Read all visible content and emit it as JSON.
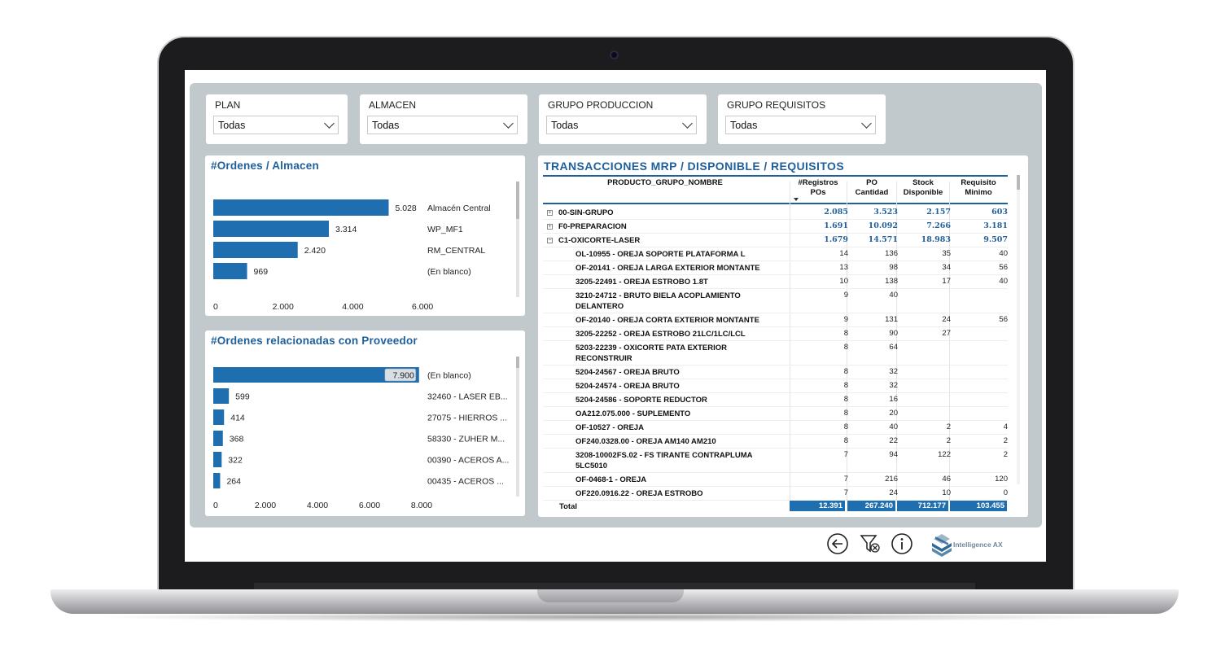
{
  "slicers": [
    {
      "title": "PLAN",
      "value": "Todas"
    },
    {
      "title": "ALMACEN",
      "value": "Todas"
    },
    {
      "title": "GRUPO PRODUCCION",
      "value": "Todas"
    },
    {
      "title": "GRUPO REQUISITOS",
      "value": "Todas"
    }
  ],
  "chart_data": [
    {
      "type": "bar",
      "orientation": "horizontal",
      "title": "#Ordenes / Almacen",
      "categories": [
        "Almacén Central",
        "WP_MF1",
        "RM_CENTRAL",
        "(En blanco)"
      ],
      "values": [
        5028,
        3314,
        2420,
        969
      ],
      "value_labels": [
        "5.028",
        "3.314",
        "2.420",
        "969"
      ],
      "xlim": [
        0,
        7000
      ],
      "xticks": [
        "0",
        "2.000",
        "4.000",
        "6.000"
      ],
      "xtick_values": [
        0,
        2000,
        4000,
        6000
      ],
      "color": "#1f6fb0"
    },
    {
      "type": "bar",
      "orientation": "horizontal",
      "title": "#Ordenes relacionadas con Proveedor",
      "categories": [
        "(En blanco)",
        "32460 - LASER EB...",
        "27075 - HIERROS ...",
        "58330 - ZUHER M...",
        "00390 - ACEROS A...",
        "00435 - ACEROS ..."
      ],
      "values": [
        7900,
        599,
        414,
        368,
        322,
        264
      ],
      "value_labels": [
        "7.900",
        "599",
        "414",
        "368",
        "322",
        "264"
      ],
      "xlim": [
        0,
        9000
      ],
      "xticks": [
        "0",
        "2.000",
        "4.000",
        "6.000",
        "8.000"
      ],
      "xtick_values": [
        0,
        2000,
        4000,
        6000,
        8000
      ],
      "color": "#1f6fb0"
    }
  ],
  "table": {
    "title": "TRANSACCIONES MRP / DISPONIBLE / REQUISITOS",
    "headers": [
      "PRODUCTO_GRUPO_NOMBRE",
      "#Registros POs",
      "PO Cantidad",
      "Stock Disponible",
      "Requisito Minimo"
    ],
    "header_lines": [
      [
        "PRODUCTO_GRUPO_NOMBRE"
      ],
      [
        "#Registros",
        "POs"
      ],
      [
        "PO",
        "Cantidad"
      ],
      [
        "Stock",
        "Disponible"
      ],
      [
        "Requisito",
        "Minimo"
      ]
    ],
    "rows": [
      {
        "kind": "grp",
        "expander": "+",
        "name": "00-SIN-GRUPO",
        "v": [
          "2.085",
          "3.523",
          "2.157",
          "603"
        ]
      },
      {
        "kind": "grp",
        "expander": "+",
        "name": "F0-PREPARACION",
        "v": [
          "1.691",
          "10.092",
          "7.266",
          "3.181"
        ]
      },
      {
        "kind": "grp",
        "expander": "−",
        "name": "C1-OXICORTE-LASER",
        "v": [
          "1.679",
          "14.571",
          "18.983",
          "9.507"
        ]
      },
      {
        "kind": "det",
        "name": "OL-10955 - OREJA SOPORTE PLATAFORMA L",
        "v": [
          "14",
          "136",
          "35",
          "40"
        ]
      },
      {
        "kind": "det",
        "name": "OF-20141 - OREJA LARGA EXTERIOR MONTANTE",
        "v": [
          "13",
          "98",
          "34",
          "56"
        ]
      },
      {
        "kind": "det",
        "name": "3205-22491 - OREJA ESTROBO 1.8T",
        "v": [
          "10",
          "138",
          "17",
          "40"
        ]
      },
      {
        "kind": "det",
        "name": "3210-24712 - BRUTO BIELA ACOPLAMIENTO DELANTERO",
        "v": [
          "9",
          "40",
          "",
          ""
        ]
      },
      {
        "kind": "det",
        "name": "OF-20140 - OREJA CORTA EXTERIOR MONTANTE",
        "v": [
          "9",
          "131",
          "24",
          "56"
        ]
      },
      {
        "kind": "det",
        "name": "3205-22252 - OREJA ESTROBO 21LC/1LC/LCL",
        "v": [
          "8",
          "90",
          "27",
          ""
        ]
      },
      {
        "kind": "det",
        "name": "5203-22239 - OXICORTE PATA EXTERIOR RECONSTRUIR",
        "v": [
          "8",
          "64",
          "",
          ""
        ]
      },
      {
        "kind": "det",
        "name": "5204-24567 - OREJA BRUTO",
        "v": [
          "8",
          "32",
          "",
          ""
        ]
      },
      {
        "kind": "det",
        "name": "5204-24574 - OREJA BRUTO",
        "v": [
          "8",
          "32",
          "",
          ""
        ]
      },
      {
        "kind": "det",
        "name": "5204-24586 - SOPORTE REDUCTOR",
        "v": [
          "8",
          "16",
          "",
          ""
        ]
      },
      {
        "kind": "det",
        "name": "OA212.075.000 - SUPLEMENTO",
        "v": [
          "8",
          "20",
          "",
          ""
        ]
      },
      {
        "kind": "det",
        "name": "OF-10527 - OREJA",
        "v": [
          "8",
          "40",
          "2",
          "4"
        ]
      },
      {
        "kind": "det",
        "name": "OF240.0328.00 - OREJA AM140 AM210",
        "v": [
          "8",
          "22",
          "2",
          "2"
        ]
      },
      {
        "kind": "det",
        "name": "3208-10002FS.02 - FS TIRANTE CONTRAPLUMA 5LC5010",
        "v": [
          "7",
          "94",
          "122",
          "2"
        ]
      },
      {
        "kind": "det",
        "name": "OF-0468-1 - OREJA",
        "v": [
          "7",
          "216",
          "46",
          "120"
        ]
      },
      {
        "kind": "det",
        "name": "OF220.0916.22 - OREJA ESTROBO",
        "v": [
          "7",
          "24",
          "10",
          "0"
        ]
      }
    ],
    "total": {
      "label": "Total",
      "v": [
        "12.391",
        "267.240",
        "712.177",
        "103.455"
      ]
    }
  },
  "footer": {
    "back_icon": "arrow-left-circle-icon",
    "clear_filters_icon": "filter-clear-icon",
    "info_icon": "info-circle-icon",
    "logo_text": "Intelligence AX"
  }
}
